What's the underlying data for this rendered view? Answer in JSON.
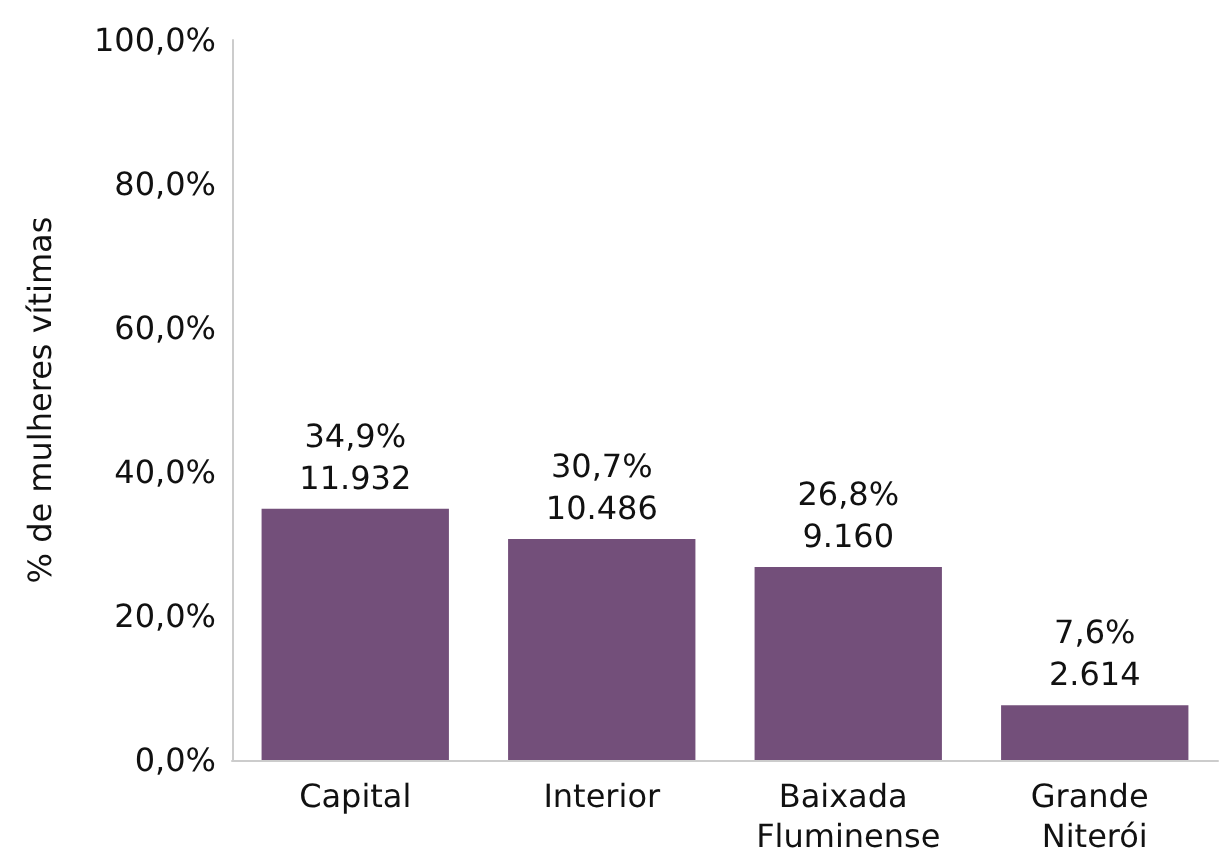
{
  "chart_data": {
    "type": "bar",
    "ylabel": "% de mulheres vítimas",
    "categories": [
      "Capital",
      "Interior",
      "Baixada Fluminense",
      "Grande Niterói"
    ],
    "values": [
      34.9,
      30.7,
      26.8,
      7.6
    ],
    "color": "#734f7a",
    "value_labels": [
      "34,9%\n11.932",
      "30,7%\n10.486",
      "26,8%\n9.160",
      "7,6%\n2.614"
    ],
    "ylim": [
      0,
      100
    ],
    "yticks": [
      {
        "value": 0,
        "label": "0,0%"
      },
      {
        "value": 20,
        "label": "20,0%"
      },
      {
        "value": 40,
        "label": "40,0%"
      },
      {
        "value": 60,
        "label": "60,0%"
      },
      {
        "value": 80,
        "label": "80,0%"
      },
      {
        "value": 100,
        "label": "100,0%"
      }
    ],
    "grid": false
  }
}
